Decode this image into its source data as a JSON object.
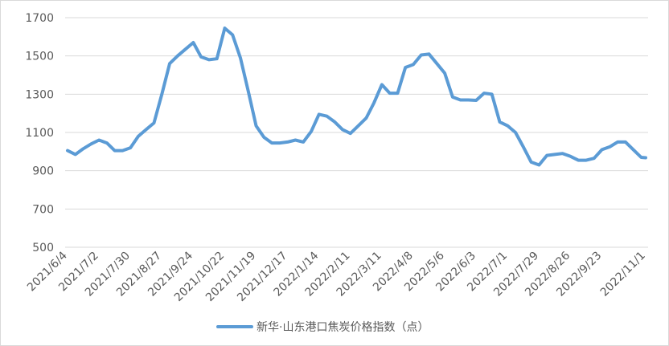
{
  "chart_data": {
    "type": "line",
    "title": "",
    "xlabel": "",
    "ylabel": "",
    "ylim": [
      500,
      1700
    ],
    "y_ticks": [
      500,
      700,
      900,
      1100,
      1300,
      1500,
      1700
    ],
    "grid": true,
    "legend_position": "bottom",
    "x_tick_labels": [
      "2021/6/4",
      "2021/7/2",
      "2021/7/30",
      "2021/8/27",
      "2021/9/24",
      "2021/10/22",
      "2021/11/19",
      "2021/12/17",
      "2022/1/14",
      "2022/2/11",
      "2022/3/11",
      "2022/4/8",
      "2022/5/6",
      "2022/6/3",
      "2022/7/1",
      "2022/7/29",
      "2022/8/26",
      "2022/9/23",
      "2022/11/1"
    ],
    "series": [
      {
        "name": "新华·山东港口焦炭价格指数（点）",
        "color": "#5b9bd5",
        "x": [
          "2021/6/4",
          "2021/6/11",
          "2021/6/18",
          "2021/6/25",
          "2021/7/2",
          "2021/7/9",
          "2021/7/16",
          "2021/7/23",
          "2021/7/30",
          "2021/8/6",
          "2021/8/13",
          "2021/8/20",
          "2021/8/27",
          "2021/9/3",
          "2021/9/10",
          "2021/9/17",
          "2021/9/24",
          "2021/10/1",
          "2021/10/8",
          "2021/10/15",
          "2021/10/22",
          "2021/10/29",
          "2021/11/5",
          "2021/11/12",
          "2021/11/19",
          "2021/11/26",
          "2021/12/3",
          "2021/12/10",
          "2021/12/17",
          "2021/12/24",
          "2021/12/31",
          "2022/1/7",
          "2022/1/14",
          "2022/1/21",
          "2022/1/28",
          "2022/2/4",
          "2022/2/11",
          "2022/2/18",
          "2022/2/25",
          "2022/3/4",
          "2022/3/11",
          "2022/3/18",
          "2022/3/25",
          "2022/4/1",
          "2022/4/8",
          "2022/4/15",
          "2022/4/22",
          "2022/4/29",
          "2022/5/6",
          "2022/5/13",
          "2022/5/20",
          "2022/5/27",
          "2022/6/3",
          "2022/6/10",
          "2022/6/17",
          "2022/6/24",
          "2022/7/1",
          "2022/7/8",
          "2022/7/15",
          "2022/7/22",
          "2022/7/29",
          "2022/8/5",
          "2022/8/12",
          "2022/8/19",
          "2022/8/26",
          "2022/9/2",
          "2022/9/9",
          "2022/9/16",
          "2022/9/23",
          "2022/9/30",
          "2022/10/7",
          "2022/10/14",
          "2022/10/21",
          "2022/10/28",
          "2022/11/1"
        ],
        "values": [
          1005,
          985,
          1015,
          1040,
          1060,
          1045,
          1005,
          1005,
          1020,
          1080,
          1115,
          1150,
          1300,
          1460,
          1500,
          1535,
          1570,
          1495,
          1480,
          1485,
          1645,
          1610,
          1490,
          1315,
          1135,
          1075,
          1045,
          1045,
          1050,
          1060,
          1050,
          1105,
          1195,
          1185,
          1155,
          1115,
          1095,
          1135,
          1175,
          1255,
          1350,
          1305,
          1305,
          1440,
          1455,
          1505,
          1510,
          1460,
          1410,
          1285,
          1270,
          1270,
          1268,
          1305,
          1300,
          1155,
          1135,
          1100,
          1025,
          945,
          930,
          980,
          985,
          990,
          975,
          955,
          955,
          965,
          1010,
          1025,
          1050,
          1050,
          1010,
          970,
          968
        ]
      }
    ]
  }
}
